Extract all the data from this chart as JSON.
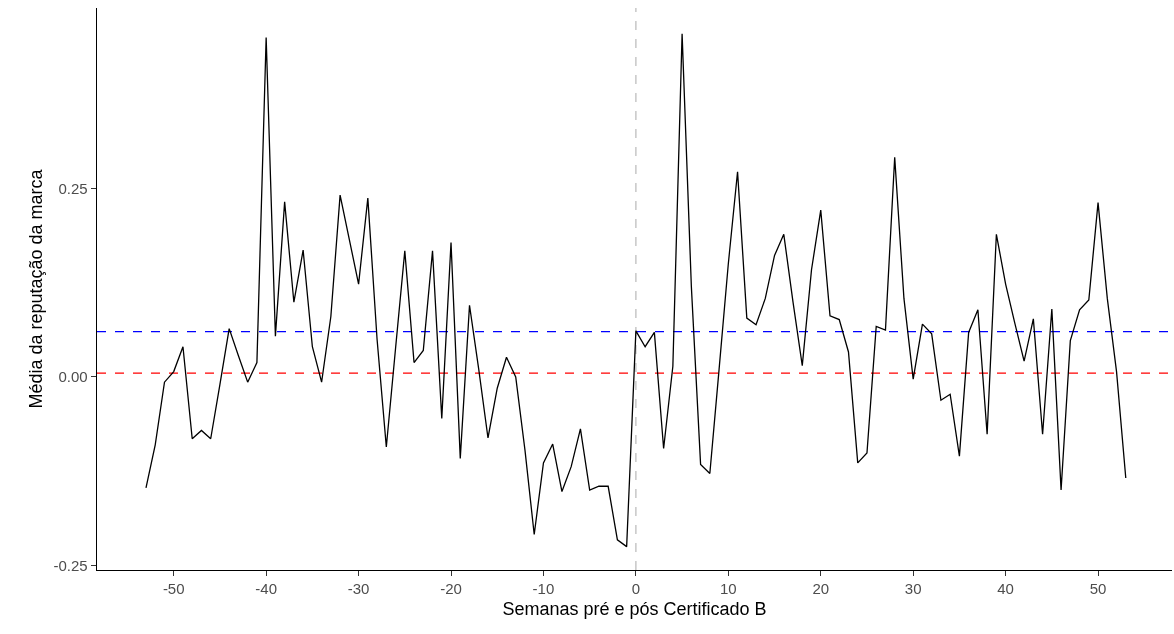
{
  "chart_data": {
    "type": "line",
    "xlabel": "Semanas pré e pós Certificado B",
    "ylabel": "Média da reputação da marca",
    "x": [
      -53,
      -52,
      -51,
      -50,
      -49,
      -48,
      -47,
      -46,
      -45,
      -44,
      -43,
      -42,
      -41,
      -40,
      -39,
      -38,
      -37,
      -36,
      -35,
      -34,
      -33,
      -32,
      -31,
      -30,
      -29,
      -28,
      -27,
      -26,
      -25,
      -24,
      -23,
      -22,
      -21,
      -20,
      -19,
      -18,
      -17,
      -16,
      -15,
      -14,
      -13,
      -12,
      -11,
      -10,
      -9,
      -8,
      -7,
      -6,
      -5,
      -4,
      -3,
      -2,
      -1,
      0,
      1,
      2,
      3,
      4,
      5,
      6,
      7,
      8,
      9,
      10,
      11,
      12,
      13,
      14,
      15,
      16,
      17,
      18,
      19,
      20,
      21,
      22,
      23,
      24,
      25,
      26,
      27,
      28,
      29,
      30,
      31,
      32,
      33,
      34,
      35,
      36,
      37,
      38,
      39,
      40,
      41,
      42,
      43,
      44,
      45,
      46,
      47,
      48,
      49,
      50,
      51,
      52,
      53
    ],
    "series": [
      {
        "color": "#000000",
        "values": [
          -0.147,
          -0.09,
          -0.007,
          0.007,
          0.04,
          -0.082,
          -0.071,
          -0.082,
          -0.01,
          0.064,
          0.028,
          -0.007,
          0.019,
          0.45,
          0.054,
          0.232,
          0.099,
          0.168,
          0.04,
          -0.007,
          0.08,
          0.241,
          0.182,
          0.123,
          0.237,
          0.05,
          -0.093,
          0.038,
          0.167,
          0.019,
          0.035,
          0.167,
          -0.055,
          0.178,
          -0.108,
          0.095,
          0.01,
          -0.081,
          -0.015,
          0.026,
          0.0,
          -0.097,
          -0.209,
          -0.114,
          -0.089,
          -0.152,
          -0.119,
          -0.069,
          -0.15,
          -0.145,
          -0.145,
          -0.216,
          -0.225,
          0.061,
          0.04,
          0.059,
          -0.095,
          0.014,
          0.455,
          0.12,
          -0.116,
          -0.128,
          0.01,
          0.15,
          0.272,
          0.078,
          0.069,
          0.104,
          0.161,
          0.189,
          0.099,
          0.015,
          0.142,
          0.221,
          0.081,
          0.076,
          0.033,
          -0.114,
          -0.101,
          0.067,
          0.062,
          0.291,
          0.104,
          -0.003,
          0.07,
          0.057,
          -0.031,
          -0.023,
          -0.105,
          0.059,
          0.089,
          -0.076,
          0.189,
          0.123,
          0.071,
          0.021,
          0.077,
          -0.076,
          0.09,
          -0.15,
          0.048,
          0.089,
          0.102,
          0.231,
          0.104,
          0.007,
          -0.134
        ]
      }
    ],
    "xlim": [
      -58.3,
      58
    ],
    "ylim": [
      -0.256,
      0.489
    ],
    "xticks": [
      -50,
      -40,
      -30,
      -20,
      -10,
      0,
      10,
      20,
      30,
      40,
      50
    ],
    "yticks": [
      {
        "value": -0.25,
        "label": "-0.25"
      },
      {
        "value": 0,
        "label": "0.00"
      },
      {
        "value": 0.25,
        "label": "0.25"
      }
    ],
    "ref_lines": [
      {
        "axis": "y",
        "value": 0.005,
        "color": "#ff0000",
        "line_style": "dashed"
      },
      {
        "axis": "y",
        "value": 0.06,
        "color": "#0000ff",
        "line_style": "dashed"
      },
      {
        "axis": "x",
        "value": 0,
        "color": "#bebebe",
        "line_style": "dashed"
      }
    ],
    "grid": false,
    "marker": "none",
    "line_style": "solid"
  }
}
